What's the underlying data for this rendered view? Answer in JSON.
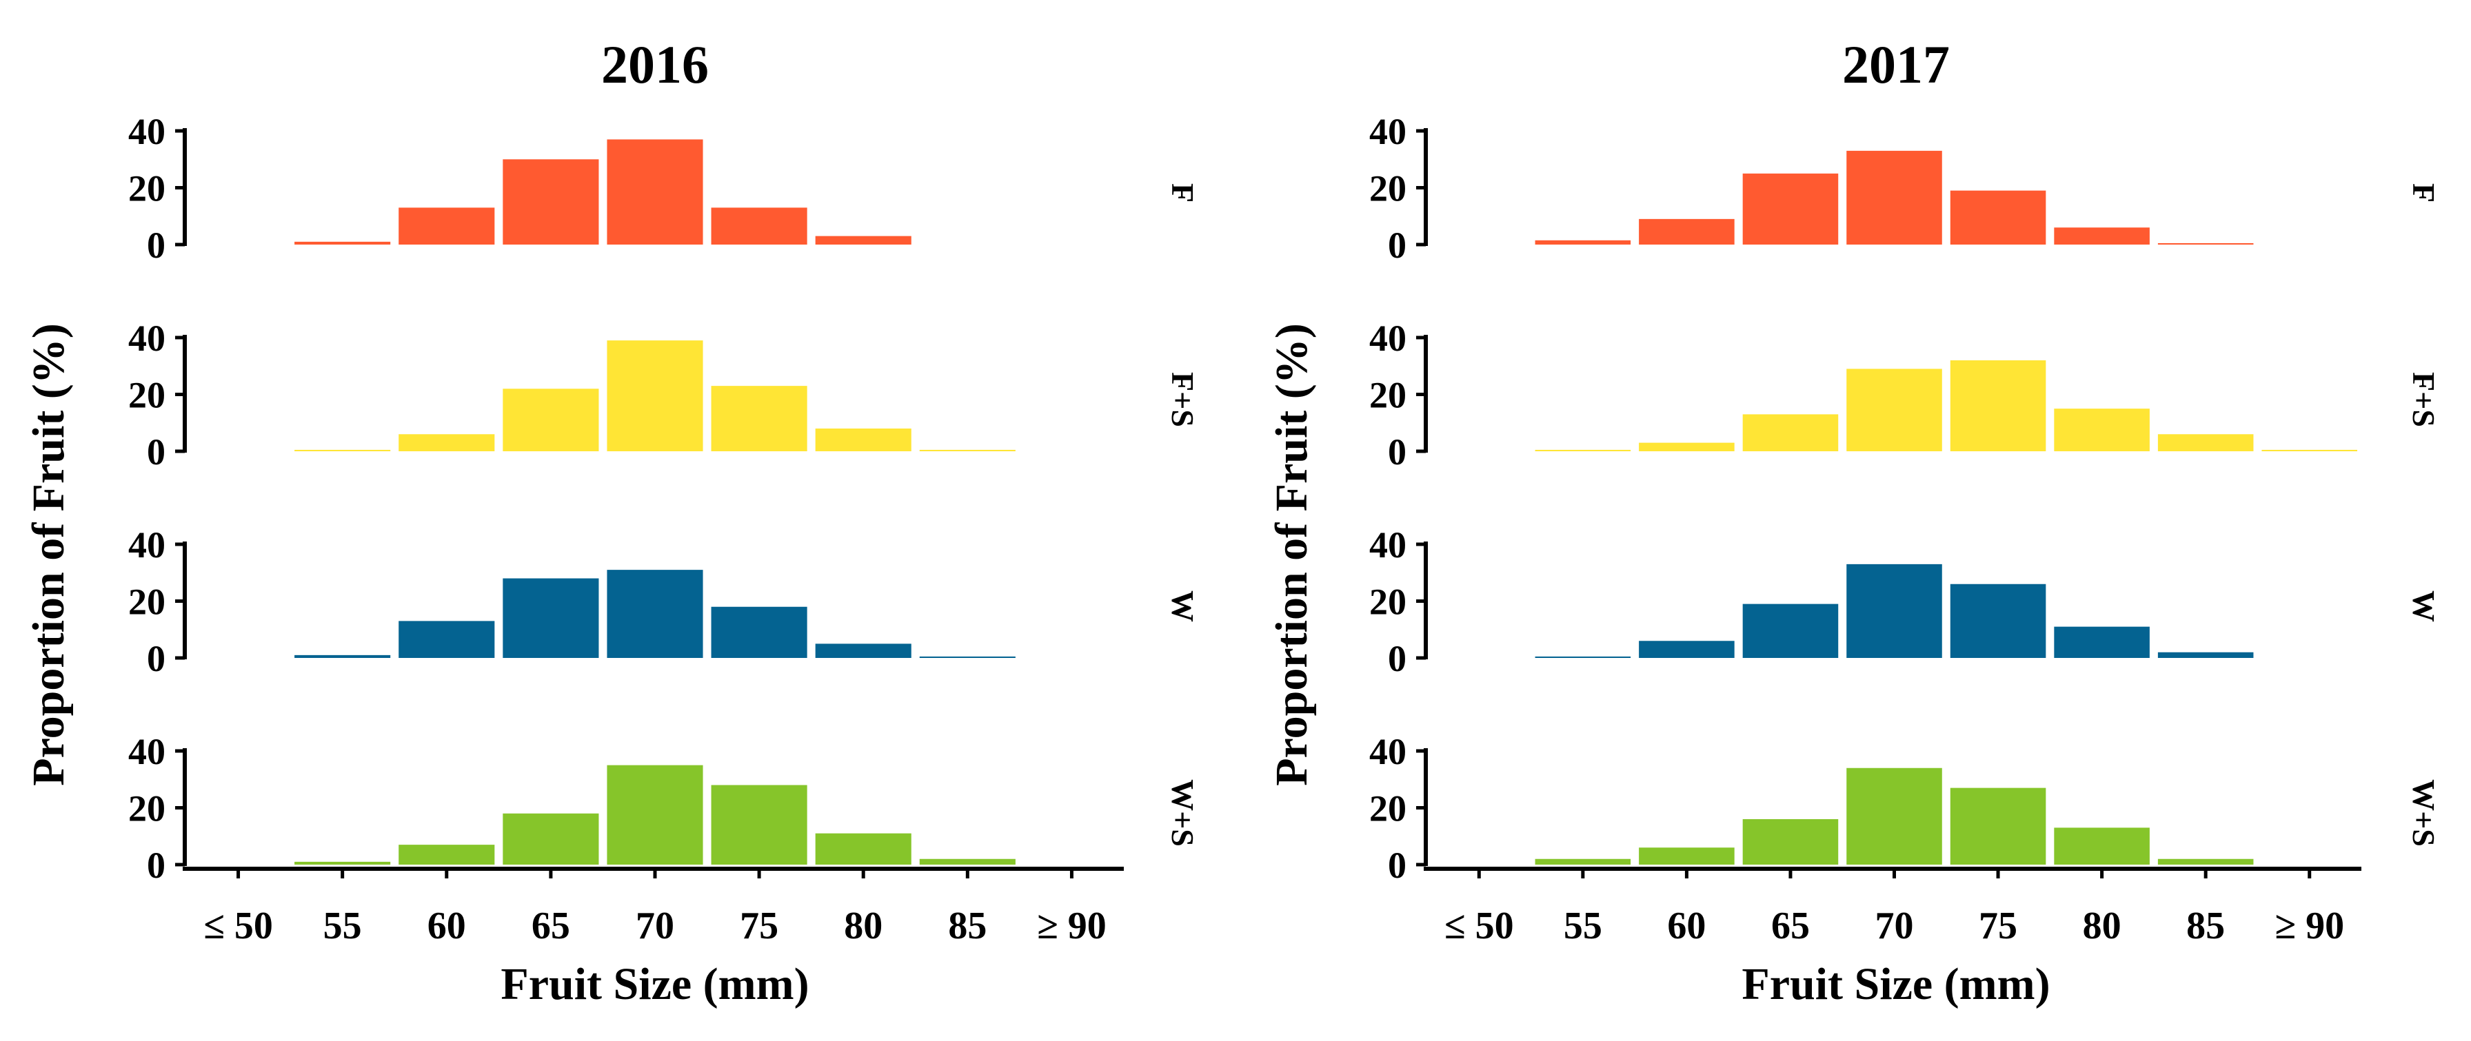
{
  "chart_data": [
    {
      "type": "bar",
      "title": "2016",
      "xlabel": "Fruit Size (mm)",
      "ylabel": "Proportion of Fruit (%)",
      "ylim": [
        0,
        40
      ],
      "yticks": [
        "0",
        "20",
        "40"
      ],
      "categories": [
        "≤ 50",
        "55",
        "60",
        "65",
        "70",
        "75",
        "80",
        "85",
        "≥ 90"
      ],
      "series": [
        {
          "name": "F",
          "color": "#FF5A30",
          "values": [
            0,
            1,
            13,
            30,
            37,
            13,
            3,
            0,
            0
          ]
        },
        {
          "name": "F+S",
          "color": "#FFE535",
          "values": [
            0,
            0.5,
            6,
            22,
            39,
            23,
            8,
            0.5,
            0
          ]
        },
        {
          "name": "W",
          "color": "#046391",
          "values": [
            0,
            1,
            13,
            28,
            31,
            18,
            5,
            0.5,
            0
          ]
        },
        {
          "name": "W+S",
          "color": "#86C52A",
          "values": [
            0,
            1,
            7,
            18,
            35,
            28,
            11,
            2,
            0
          ]
        }
      ]
    },
    {
      "type": "bar",
      "title": "2017",
      "xlabel": "Fruit Size (mm)",
      "ylabel": "Proportion of Fruit (%)",
      "ylim": [
        0,
        40
      ],
      "yticks": [
        "0",
        "20",
        "40"
      ],
      "categories": [
        "≤ 50",
        "55",
        "60",
        "65",
        "70",
        "75",
        "80",
        "85",
        "≥ 90"
      ],
      "series": [
        {
          "name": "F",
          "color": "#FF5A30",
          "values": [
            0,
            1.5,
            9,
            25,
            33,
            19,
            6,
            0.5,
            0
          ]
        },
        {
          "name": "F+S",
          "color": "#FFE535",
          "values": [
            0,
            0.5,
            3,
            13,
            29,
            32,
            15,
            6,
            0.5
          ]
        },
        {
          "name": "W",
          "color": "#046391",
          "values": [
            0,
            0.5,
            6,
            19,
            33,
            26,
            11,
            2,
            0
          ]
        },
        {
          "name": "W+S",
          "color": "#86C52A",
          "values": [
            0,
            2,
            6,
            16,
            34,
            27,
            13,
            2,
            0
          ]
        }
      ]
    }
  ]
}
